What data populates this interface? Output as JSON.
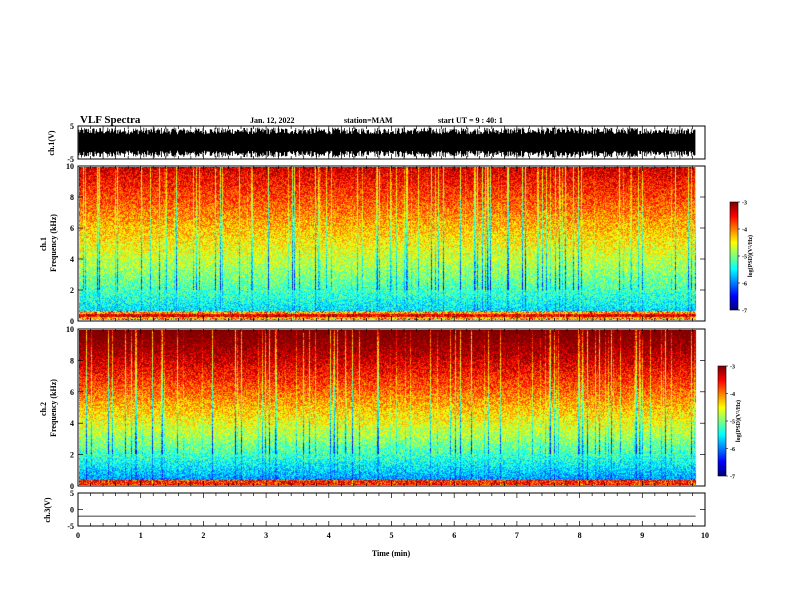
{
  "header": {
    "title": "VLF Spectra",
    "date": "Jan. 12, 2022",
    "station": "station=MAM",
    "start_ut": "start UT = 9 : 40: 1"
  },
  "chart_data": [
    {
      "id": "ch1-voltage",
      "type": "line",
      "ylabel": "ch.1(V)",
      "yticks": [
        5,
        -5
      ],
      "ylim": [
        -5,
        5
      ],
      "xlim": [
        0,
        10
      ],
      "style": "dense-black-waveform"
    },
    {
      "id": "ch1-spectrogram",
      "type": "heatmap",
      "ylabel": "ch.1\nFrequency (kHz)",
      "ylabel_lines": [
        "ch.1",
        "Frequency (kHz)"
      ],
      "yticks": [
        0,
        2,
        4,
        6,
        8,
        10
      ],
      "ylim": [
        0,
        10
      ],
      "xlim": [
        0,
        10
      ],
      "data_end_min": 9.85,
      "colorbar": {
        "label": "log(PSD)(V²/Hz)",
        "ticks": [
          -3,
          -4,
          -5,
          -6,
          -7
        ],
        "range": [
          -7,
          -3
        ]
      }
    },
    {
      "id": "ch2-spectrogram",
      "type": "heatmap",
      "ylabel_lines": [
        "ch.2",
        "Frequency (kHz)"
      ],
      "yticks": [
        0,
        2,
        4,
        6,
        8,
        10
      ],
      "ylim": [
        0,
        10
      ],
      "xlim": [
        0,
        10
      ],
      "data_end_min": 9.85,
      "colorbar": {
        "label": "log(PSD)(V²/Hz)",
        "ticks": [
          -3,
          -4,
          -5,
          -6,
          -7
        ],
        "range": [
          -7,
          -3
        ]
      }
    },
    {
      "id": "ch3-voltage",
      "type": "line",
      "ylabel": "ch.3(V)",
      "yticks": [
        5,
        0,
        -5
      ],
      "ylim": [
        -5,
        5
      ],
      "xlim": [
        0,
        10
      ],
      "x": [
        0,
        9.85
      ],
      "y": [
        -2,
        -2
      ]
    }
  ],
  "xaxis": {
    "label": "Time (min)",
    "ticks": [
      0,
      1,
      2,
      3,
      4,
      5,
      6,
      7,
      8,
      9,
      10
    ]
  },
  "colors": {
    "axis": "#000000",
    "background": "#ffffff"
  }
}
